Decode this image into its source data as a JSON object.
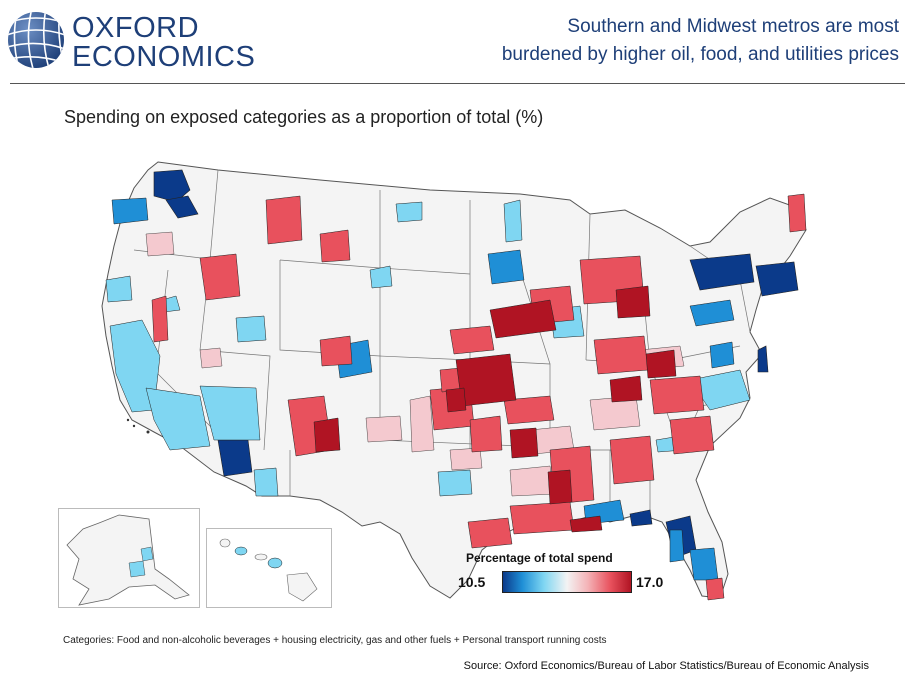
{
  "logo": {
    "line1": "OXFORD",
    "line2": "ECONOMICS"
  },
  "headline": {
    "line1": "Southern and Midwest metros are most",
    "line2": "burdened by higher oil, food, and utilities prices"
  },
  "subtitle": "Spending on exposed categories as a proportion of total (%)",
  "legend": {
    "title": "Percentage of total spend",
    "min": "10.5",
    "max": "17.0"
  },
  "categories_note": "Categories: Food and non-alcoholic beverages + housing electricity, gas and other fuels + Personal transport running costs",
  "source": "Source: Oxford Economics/Bureau of Labor Statistics/Bureau of Economic Analysis",
  "colors": {
    "dark_blue": "#0b3a8a",
    "mid_blue": "#1f8fd6",
    "light_blue": "#7fd6f2",
    "pale": "#f4f4f4",
    "pale_pink": "#f4c9cf",
    "mid_red": "#e8515d",
    "dark_red": "#b01423",
    "brand_navy": "#1e3f78"
  }
}
